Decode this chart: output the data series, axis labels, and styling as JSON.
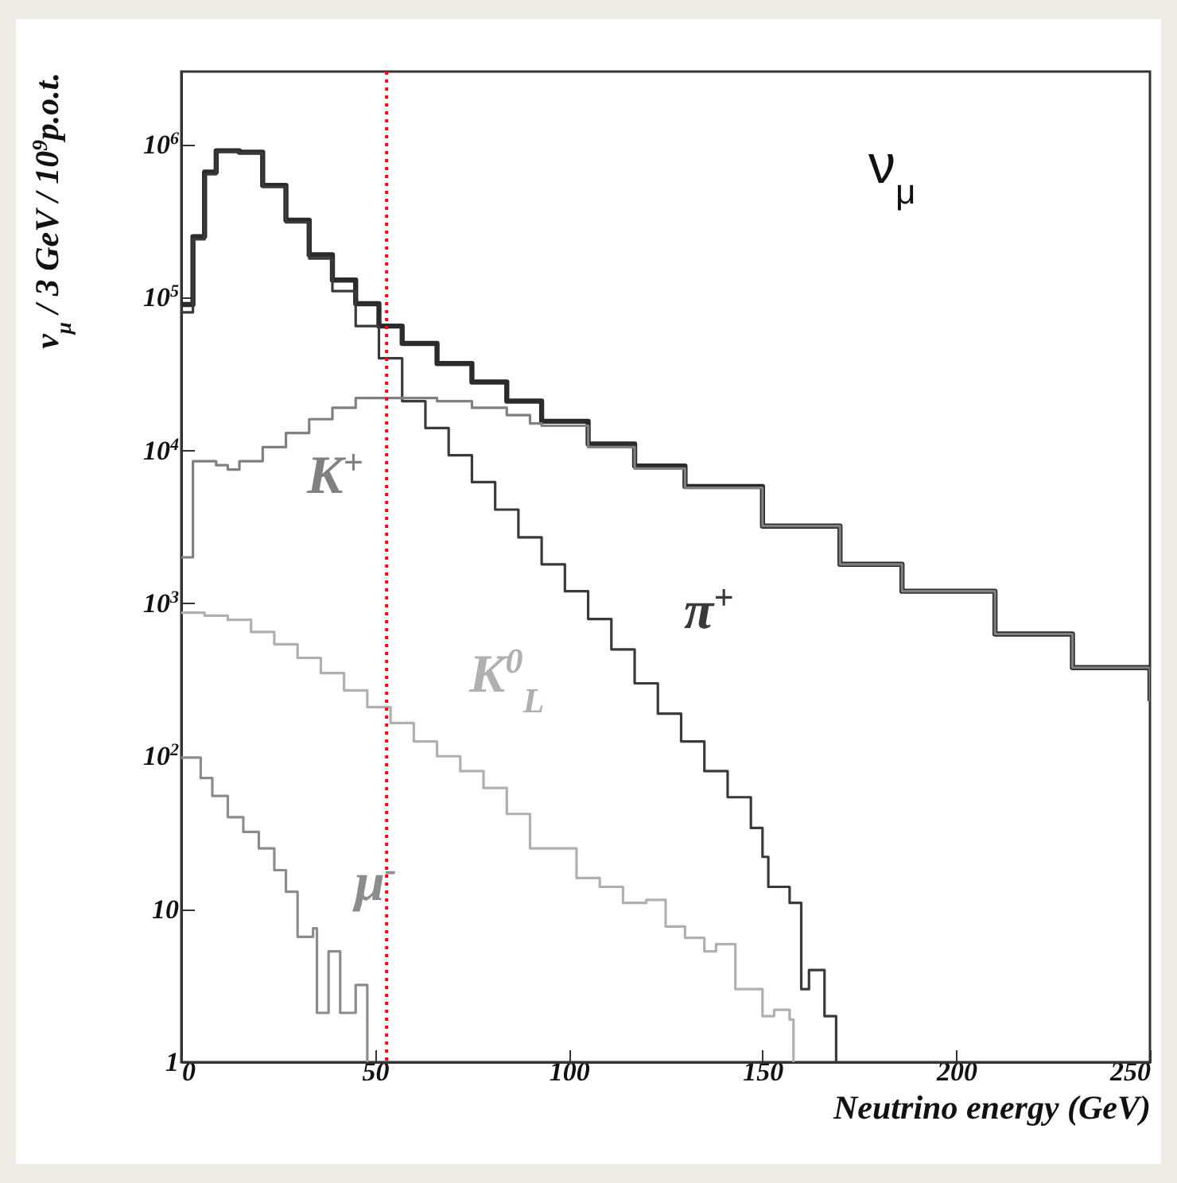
{
  "chart_data": {
    "type": "step",
    "xlabel": "Neutrino energy (GeV)",
    "ylabel": "ν$_{μ}$ / 3 GeV / 10$^{9}$p.o.t.",
    "annotations": [
      "ν$_{μ}$"
    ],
    "log": "y",
    "grid": false,
    "legend": false,
    "marker": "none",
    "xlim": [
      0,
      250
    ],
    "xticks": [
      0,
      50,
      100,
      150,
      200,
      250
    ],
    "ylim": [
      1,
      3000000
    ],
    "yticks": [
      1,
      10,
      {
        "value": 100,
        "label": "10$^{2}$"
      },
      {
        "value": 1000,
        "label": "10$^{3}$"
      },
      {
        "value": 10000,
        "label": "10$^{4}$"
      },
      {
        "value": 100000,
        "label": "10$^{5}$"
      },
      {
        "value": 1000000,
        "label": "10$^{6}$"
      }
    ],
    "ref_lines": [
      {
        "axis": "x",
        "value": 53,
        "color": "#ff0000",
        "line_style": "dotted"
      }
    ],
    "series": [
      {
        "color": "#2b2b2b",
        "x": [
          0,
          3,
          6,
          9,
          15,
          21,
          27,
          33,
          39,
          45,
          51,
          57,
          66,
          75,
          84,
          93,
          105,
          117,
          130,
          150,
          170,
          186,
          210,
          230,
          250
        ],
        "values": [
          90000,
          250000,
          660000,
          910000,
          890000,
          540000,
          320000,
          190000,
          130000,
          91000,
          65000,
          50000,
          37000,
          28000,
          21000,
          15500,
          11000,
          7900,
          5800,
          3200,
          1800,
          1200,
          630,
          380,
          230
        ]
      },
      {
        "name": "π$^{+}$",
        "color": "#3a3a3a",
        "x": [
          0,
          3,
          6,
          9,
          15,
          21,
          27,
          33,
          39,
          45,
          51,
          57,
          63,
          69,
          75,
          81,
          87,
          93,
          99,
          105,
          111,
          117,
          123,
          129,
          135,
          141,
          147,
          150,
          151.5,
          157,
          160,
          162,
          166,
          169
        ],
        "values": [
          80000,
          240000,
          640000,
          900000,
          880000,
          530000,
          310000,
          180000,
          110000,
          65000,
          40000,
          21000,
          14000,
          9300,
          6200,
          4100,
          2700,
          1800,
          1200,
          790,
          500,
          300,
          190,
          125,
          80,
          54,
          34,
          22,
          14,
          11,
          3,
          4,
          2,
          1
        ]
      },
      {
        "name": "K$^{+}$",
        "color": "#808080",
        "x": [
          0,
          3,
          9,
          12,
          15,
          21,
          27,
          33,
          39,
          45,
          60,
          66,
          75,
          84,
          90,
          93,
          105,
          117,
          130,
          150,
          170,
          186,
          210,
          230,
          250
        ],
        "values": [
          2000,
          8500,
          8000,
          7500,
          8500,
          10500,
          13000,
          16000,
          19000,
          22000,
          22000,
          21000,
          19000,
          17000,
          15000,
          14500,
          10500,
          7600,
          5700,
          3200,
          1800,
          1200,
          630,
          380,
          230
        ]
      },
      {
        "name": "K$^{0}$$_{L}$",
        "color": "#b0b0b0",
        "x": [
          0,
          6,
          12,
          18,
          24,
          30,
          36,
          42,
          48,
          54,
          60,
          66,
          72,
          78,
          84,
          90,
          96,
          102,
          108,
          114,
          120,
          125,
          130,
          135,
          138,
          143,
          150,
          153,
          157,
          158
        ],
        "values": [
          870,
          830,
          780,
          650,
          540,
          440,
          350,
          270,
          210,
          165,
          125,
          100,
          80,
          62,
          42,
          25,
          25,
          16,
          14,
          11,
          11.5,
          7.7,
          6.5,
          5.3,
          5.9,
          3,
          2,
          2.2,
          1.9,
          1
        ]
      },
      {
        "name": "μ$^{-}$",
        "color": "#8c8c8c",
        "x": [
          0,
          5,
          8,
          12,
          16,
          20,
          24,
          27,
          30,
          34,
          35,
          38,
          41,
          45,
          48
        ],
        "values": [
          98,
          72,
          55,
          40,
          32,
          25,
          18,
          13,
          6.6,
          7.5,
          2.1,
          5.3,
          2.1,
          3.2,
          1
        ]
      }
    ]
  }
}
